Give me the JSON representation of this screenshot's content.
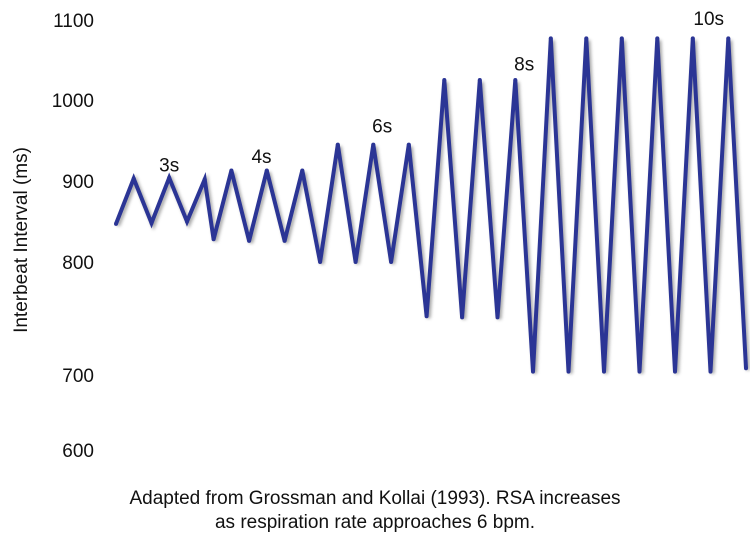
{
  "chart_data": {
    "type": "line",
    "ylabel": "Interbeat Interval (ms)",
    "yticks": [
      1100,
      1000,
      900,
      800,
      700,
      600
    ],
    "ylim": [
      600,
      1100
    ],
    "grid": false,
    "color": "#2b3595",
    "caption_lines": [
      "Adapted from Grossman and Kollai (1993). RSA increases",
      "as respiration rate approaches 6 bpm."
    ],
    "annotations": [
      {
        "text": "3s",
        "x": 3.0,
        "y": 912
      },
      {
        "text": "4s",
        "x": 8.2,
        "y": 922
      },
      {
        "text": "6s",
        "x": 15.0,
        "y": 960
      },
      {
        "text": "8s",
        "x": 23.0,
        "y": 1037
      },
      {
        "text": "10s",
        "x": 33.4,
        "y": 1094
      }
    ],
    "x": [
      0,
      1,
      2,
      3,
      4,
      5,
      5.5,
      6.5,
      7.5,
      8.5,
      9.5,
      10.5,
      11.5,
      12.5,
      13.5,
      14.5,
      15.5,
      16.5,
      17.5,
      18.5,
      19.5,
      20.5,
      21.5,
      22.5,
      23.5,
      24.5,
      25.5,
      26.5,
      27.5,
      28.5,
      29.5,
      30.5,
      31.5,
      32.5,
      33.5,
      34.5,
      35.5
    ],
    "values": [
      847,
      903,
      848,
      904,
      850,
      902,
      828,
      913,
      826,
      913,
      826,
      913,
      800,
      945,
      800,
      945,
      800,
      945,
      752,
      1025,
      751,
      1025,
      751,
      1025,
      703,
      1077,
      703,
      1077,
      703,
      1077,
      703,
      1077,
      703,
      1077,
      703,
      1077,
      706
    ]
  }
}
